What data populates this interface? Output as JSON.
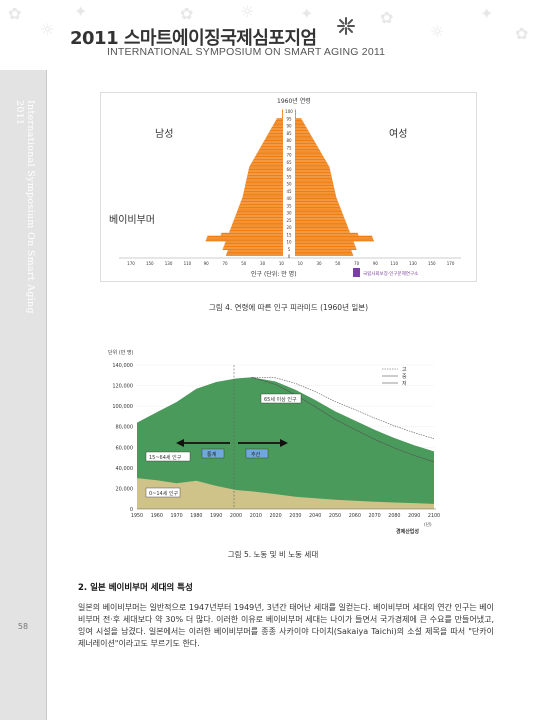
{
  "header": {
    "title": "2011 스마트에이징국제심포지엄",
    "subtitle": "INTERNATIONAL SYMPOSIUM ON SMART AGING 2011"
  },
  "sidebar": {
    "vertical_text": "International Symposium On Smart Aging 2011",
    "page_number": "58"
  },
  "figure1": {
    "year_label": "1960년\n연령",
    "male_label": "남성",
    "female_label": "여성",
    "boomer_label": "베이비부머",
    "age_ticks": [
      "100",
      "95",
      "90",
      "85",
      "80",
      "75",
      "70",
      "65",
      "60",
      "55",
      "50",
      "45",
      "40",
      "35",
      "30",
      "25",
      "20",
      "15",
      "10",
      "5",
      "0"
    ],
    "x_ticks": [
      "170",
      "150",
      "130",
      "110",
      "90",
      "70",
      "50",
      "30",
      "10",
      "10",
      "30",
      "50",
      "70",
      "90",
      "110",
      "130",
      "150",
      "170"
    ],
    "x_label": "인구 (단위: 만 명)",
    "source": "국립사회보장·인구문제연구소",
    "caption": "그림 4. 연령에 따른 인구 피라미드 (1960년 일본)"
  },
  "figure2": {
    "y_unit": "단위 (만 명)",
    "y_ticks": [
      "140,000",
      "120,000",
      "100,000",
      "80,000",
      "60,000",
      "40,000",
      "20,000",
      "0"
    ],
    "x_ticks": [
      "1950",
      "1960",
      "1970",
      "1980",
      "1990",
      "2000",
      "2010",
      "2020",
      "2030",
      "2040",
      "2050",
      "2060",
      "2070",
      "2080",
      "2090",
      "2100"
    ],
    "x_unit": "(년)",
    "legend": [
      "고",
      "중",
      "저"
    ],
    "label_65": "65세 이상 인구",
    "label_15_64": "15~64세 인구",
    "label_0_14": "0~14세 인구",
    "arrow_left_label": "통계",
    "arrow_right_label": "추산",
    "source": "경제산업성",
    "caption": "그림 5. 노동 및 비 노동 세대"
  },
  "section": {
    "title": "2. 일본 베이비부머 세대의 특성",
    "paragraph": "일본의 베이비부머는 일반적으로 1947년부터 1949년, 3년간 태어난 세대를 일컫는다. 베이비부머 세대의 연간 인구는 베이비부머 전·후 세대보다 약 30% 더 많다. 이러한 이유로 베이비부머 세대는 나이가 들면서 국가경제에 큰 수요를 만들어냈고, 잉여 시설을 남겼다. 일본에서는 이러한 베이비부머를 종종 사카이야 다이치(Sakaiya Taichi)의 소설 제목을 따서 \"단카이 제너레이션\"이라고도 부르기도 한다."
  },
  "colors": {
    "pyramid": "#f07f12",
    "area_total": "#6fa8dc",
    "area_65": "#4a9a5b",
    "area_child": "#cfc38a"
  }
}
